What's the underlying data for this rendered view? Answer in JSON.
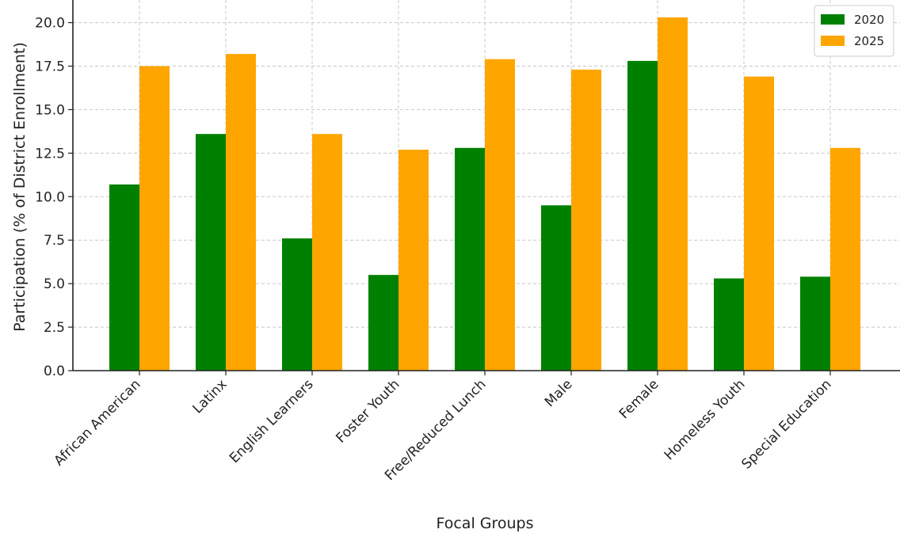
{
  "chart_data": {
    "type": "bar",
    "xlabel": "Focal Groups",
    "ylabel": "Participation (% of District Enrollment)",
    "categories": [
      "African American",
      "Latinx",
      "English Learners",
      "Foster Youth",
      "Free/Reduced Lunch",
      "Male",
      "Female",
      "Homeless Youth",
      "Special Education"
    ],
    "series": [
      {
        "name": "2020",
        "color": "#008000",
        "values": [
          10.7,
          13.6,
          7.6,
          5.5,
          12.8,
          9.5,
          17.8,
          5.3,
          5.4
        ]
      },
      {
        "name": "2025",
        "color": "#FFA500",
        "values": [
          17.5,
          18.2,
          13.6,
          12.7,
          17.9,
          17.3,
          20.3,
          16.9,
          12.8
        ]
      }
    ],
    "ylim": [
      0,
      21.3
    ],
    "yticks": [
      "0.0",
      "2.5",
      "5.0",
      "7.5",
      "10.0",
      "12.5",
      "15.0",
      "17.5",
      "20.0"
    ],
    "grid": true,
    "legend_position": "top-right"
  }
}
